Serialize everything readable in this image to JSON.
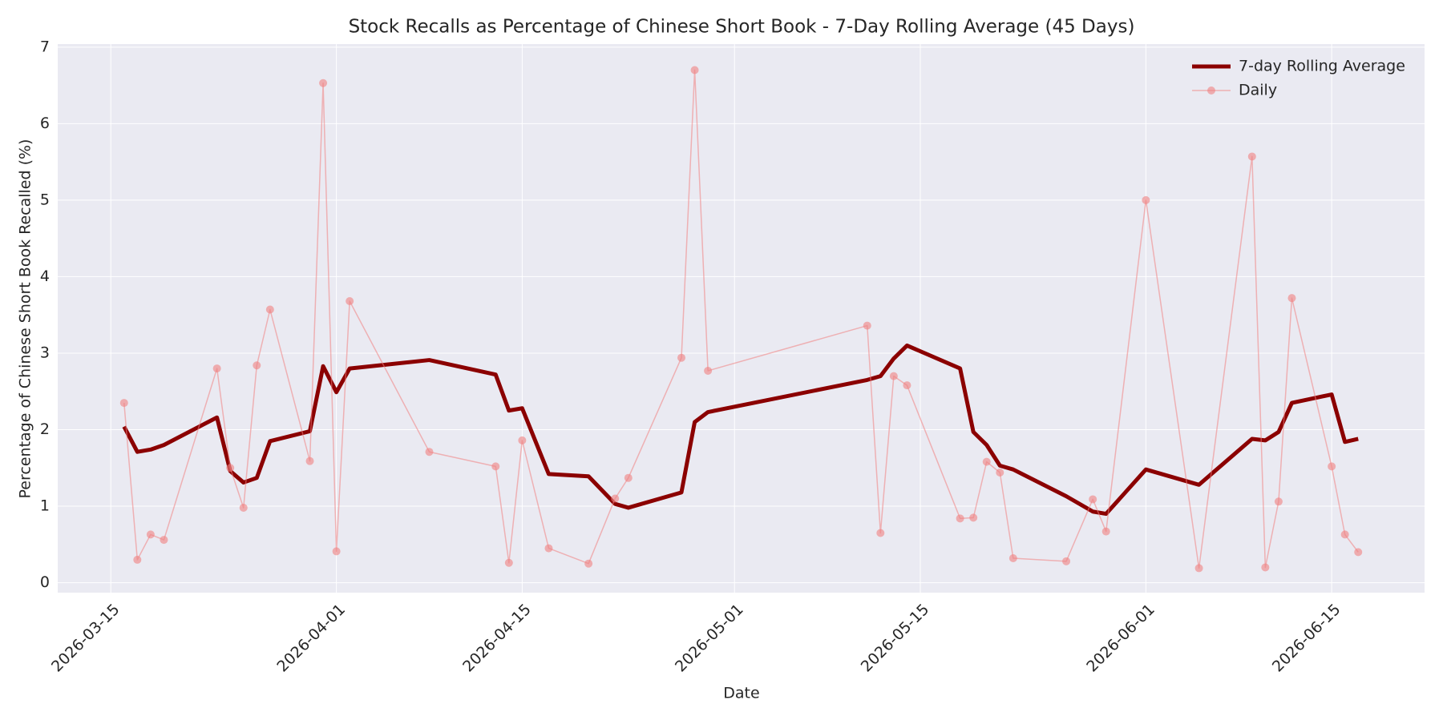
{
  "chart_data": {
    "type": "line",
    "title": "Stock Recalls as Percentage of Chinese Short Book - 7-Day Rolling Average (45 Days)",
    "x_label": "Date",
    "y_label": "Percentage of Chinese Short Book Recalled (%)",
    "x": [
      "2026-03-16",
      "2026-03-17",
      "2026-03-18",
      "2026-03-19",
      "2026-03-23",
      "2026-03-24",
      "2026-03-25",
      "2026-03-26",
      "2026-03-27",
      "2026-03-30",
      "2026-03-31",
      "2026-04-01",
      "2026-04-02",
      "2026-04-08",
      "2026-04-13",
      "2026-04-14",
      "2026-04-15",
      "2026-04-17",
      "2026-04-20",
      "2026-04-22",
      "2026-04-23",
      "2026-04-27",
      "2026-04-28",
      "2026-04-29",
      "2026-05-11",
      "2026-05-12",
      "2026-05-13",
      "2026-05-14",
      "2026-05-18",
      "2026-05-19",
      "2026-05-20",
      "2026-05-21",
      "2026-05-22",
      "2026-05-26",
      "2026-05-28",
      "2026-05-29",
      "2026-06-01",
      "2026-06-05",
      "2026-06-09",
      "2026-06-10",
      "2026-06-11",
      "2026-06-12",
      "2026-06-15",
      "2026-06-16",
      "2026-06-17"
    ],
    "series": [
      {
        "name": "7-day Rolling Average",
        "color": "#8b0000",
        "values": [
          2.04,
          1.71,
          1.74,
          1.8,
          2.16,
          1.46,
          1.31,
          1.37,
          1.85,
          1.98,
          2.83,
          2.49,
          2.8,
          2.91,
          2.72,
          2.25,
          2.28,
          1.42,
          1.39,
          1.03,
          0.98,
          1.18,
          2.1,
          2.23,
          2.65,
          2.7,
          2.93,
          3.1,
          2.8,
          1.97,
          1.8,
          1.53,
          1.48,
          1.13,
          0.93,
          0.9,
          1.48,
          1.28,
          1.88,
          1.86,
          1.97,
          2.35,
          2.46,
          1.84,
          1.88
        ]
      },
      {
        "name": "Daily",
        "color": "#f08080",
        "marker": true,
        "values": [
          2.35,
          0.3,
          0.63,
          0.56,
          2.8,
          1.5,
          0.98,
          2.84,
          3.57,
          1.59,
          6.53,
          0.41,
          3.68,
          1.71,
          1.52,
          0.26,
          1.86,
          0.45,
          0.25,
          1.1,
          1.37,
          2.94,
          6.7,
          2.77,
          3.36,
          0.65,
          2.7,
          2.58,
          0.84,
          0.85,
          1.58,
          1.44,
          0.32,
          0.28,
          1.09,
          0.67,
          5.0,
          0.19,
          5.57,
          0.2,
          1.06,
          3.72,
          1.52,
          0.63,
          0.4
        ]
      }
    ],
    "xlim": [
      "2026-03-11",
      "2026-06-22"
    ],
    "xticks": [
      "2026-03-15",
      "2026-04-01",
      "2026-04-15",
      "2026-05-01",
      "2026-05-15",
      "2026-06-01",
      "2026-06-15"
    ],
    "ylim": [
      -0.13,
      7.04
    ],
    "yticks": [
      0,
      1,
      2,
      3,
      4,
      5,
      6,
      7
    ],
    "grid": true,
    "legend": "upper right"
  }
}
